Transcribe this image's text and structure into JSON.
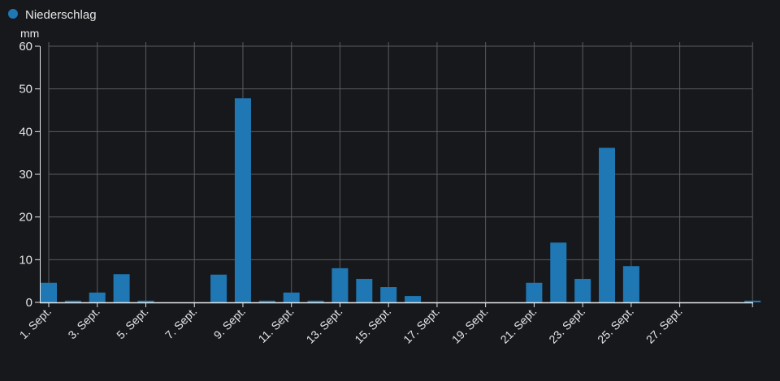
{
  "chart_data": {
    "type": "bar",
    "legend": {
      "label": "Niederschlag",
      "position": "top-left"
    },
    "ylabel": "mm",
    "ylim": [
      0,
      60
    ],
    "yticks": [
      0,
      10,
      20,
      30,
      40,
      50,
      60
    ],
    "grid": true,
    "color": "#1f77b4",
    "days": [
      1,
      2,
      3,
      4,
      5,
      6,
      7,
      8,
      9,
      10,
      11,
      12,
      13,
      14,
      15,
      16,
      17,
      18,
      19,
      20,
      21,
      22,
      23,
      24,
      25,
      26,
      27,
      28,
      29,
      30
    ],
    "values": [
      4.6,
      0.4,
      2.3,
      6.6,
      0.4,
      0,
      0,
      6.5,
      47.8,
      0.4,
      2.3,
      0.4,
      8.0,
      5.5,
      3.6,
      1.5,
      0,
      0,
      0,
      0,
      4.6,
      14.0,
      5.5,
      36.2,
      8.5,
      0,
      0,
      0,
      0,
      0.4
    ],
    "xtick_days": [
      1,
      3,
      5,
      7,
      9,
      11,
      13,
      15,
      17,
      19,
      21,
      23,
      25,
      27,
      30
    ],
    "xtick_labels": [
      "1. Sept.",
      "3. Sept.",
      "5. Sept.",
      "7. Sept.",
      "9. Sept.",
      "11. Sept.",
      "13. Sept.",
      "15. Sept.",
      "17. Sept.",
      "19. Sept.",
      "21. Sept.",
      "23. Sept.",
      "25. Sept.",
      "27. Sept.",
      ""
    ]
  }
}
